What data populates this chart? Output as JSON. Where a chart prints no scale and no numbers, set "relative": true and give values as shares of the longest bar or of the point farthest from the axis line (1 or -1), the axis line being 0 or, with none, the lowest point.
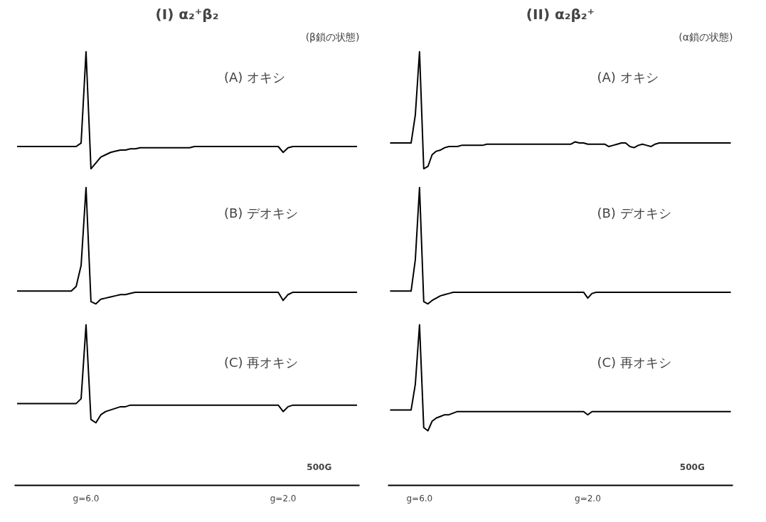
{
  "chart_data": [
    {
      "type": "line",
      "relative": true,
      "title": "(I) α₂⁺β₂",
      "subtitle": "(β鎖の状態)",
      "annotations": [
        "(A) オキシ"
      ],
      "tick_labels": false,
      "categories": [
        null,
        null,
        null,
        null,
        null,
        null,
        null,
        null,
        null,
        null,
        null,
        null,
        null,
        null,
        null,
        null,
        null,
        null,
        null,
        null,
        null,
        null,
        null,
        null,
        null,
        null,
        null,
        null,
        null,
        null,
        null,
        null,
        null,
        null,
        null,
        null,
        null,
        null,
        null,
        null,
        null,
        null,
        null,
        null,
        null,
        null,
        null,
        null,
        null,
        null,
        null,
        null,
        null,
        null,
        null,
        null,
        null,
        null,
        null,
        null,
        null,
        null,
        null,
        null,
        null,
        null,
        null,
        null,
        null,
        null
      ],
      "series": [
        {
          "color": "#000000",
          "values": [
            0.19,
            0.19,
            0.19,
            0.19,
            0.19,
            0.19,
            0.19,
            0.19,
            0.19,
            0.19,
            0.19,
            0.19,
            0.19,
            0.22,
            1,
            0,
            0.05,
            0.1,
            0.12,
            0.14,
            0.15,
            0.16,
            0.16,
            0.17,
            0.17,
            0.18,
            0.18,
            0.18,
            0.18,
            0.18,
            0.18,
            0.18,
            0.18,
            0.18,
            0.18,
            0.18,
            0.19,
            0.19,
            0.19,
            0.19,
            0.19,
            0.19,
            0.19,
            0.19,
            0.19,
            0.19,
            0.19,
            0.19,
            0.19,
            0.19,
            0.19,
            0.19,
            0.19,
            0.19,
            0.14,
            0.18,
            0.19,
            0.19,
            0.19,
            0.19,
            0.19,
            0.19,
            0.19,
            0.19,
            0.19,
            0.19,
            0.19,
            0.19,
            0.19,
            0.19
          ]
        }
      ]
    },
    {
      "type": "line",
      "relative": true,
      "title": "(II) α₂β₂⁺",
      "subtitle": "(α鎖の状態)",
      "annotations": [
        "(A) オキシ"
      ],
      "tick_labels": false,
      "categories": [
        null,
        null,
        null,
        null,
        null,
        null,
        null,
        null,
        null,
        null,
        null,
        null,
        null,
        null,
        null,
        null,
        null,
        null,
        null,
        null,
        null,
        null,
        null,
        null,
        null,
        null,
        null,
        null,
        null,
        null,
        null,
        null,
        null,
        null,
        null,
        null,
        null,
        null,
        null,
        null,
        null,
        null,
        null,
        null,
        null,
        null,
        null,
        null,
        null,
        null,
        null,
        null,
        null,
        null,
        null,
        null,
        null,
        null,
        null,
        null,
        null,
        null,
        null,
        null,
        null,
        null,
        null,
        null,
        null,
        null,
        null,
        null,
        null,
        null,
        null,
        null,
        null,
        null,
        null,
        null,
        null,
        null
      ],
      "series": [
        {
          "color": "#000000",
          "values": [
            0.22,
            0.22,
            0.22,
            0.22,
            0.22,
            0.22,
            0.46,
            1,
            0,
            0.02,
            0.12,
            0.15,
            0.16,
            0.18,
            0.19,
            0.19,
            0.19,
            0.2,
            0.2,
            0.2,
            0.2,
            0.2,
            0.2,
            0.21,
            0.21,
            0.21,
            0.21,
            0.21,
            0.21,
            0.21,
            0.21,
            0.21,
            0.21,
            0.21,
            0.21,
            0.21,
            0.21,
            0.21,
            0.21,
            0.21,
            0.21,
            0.21,
            0.21,
            0.21,
            0.23,
            0.22,
            0.22,
            0.21,
            0.21,
            0.21,
            0.21,
            0.21,
            0.19,
            0.2,
            0.21,
            0.22,
            0.22,
            0.19,
            0.18,
            0.2,
            0.21,
            0.2,
            0.19,
            0.21,
            0.22,
            0.22,
            0.22,
            0.22,
            0.22,
            0.22,
            0.22,
            0.22,
            0.22,
            0.22,
            0.22,
            0.22,
            0.22,
            0.22,
            0.22,
            0.22,
            0.22,
            0.22
          ]
        }
      ]
    },
    {
      "type": "line",
      "relative": true,
      "annotations": [
        "(B) デオキシ"
      ],
      "tick_labels": false,
      "categories": [
        null,
        null,
        null,
        null,
        null,
        null,
        null,
        null,
        null,
        null,
        null,
        null,
        null,
        null,
        null,
        null,
        null,
        null,
        null,
        null,
        null,
        null,
        null,
        null,
        null,
        null,
        null,
        null,
        null,
        null,
        null,
        null,
        null,
        null,
        null,
        null,
        null,
        null,
        null,
        null,
        null,
        null,
        null,
        null,
        null,
        null,
        null,
        null,
        null,
        null,
        null,
        null,
        null,
        null,
        null,
        null,
        null,
        null,
        null,
        null,
        null,
        null,
        null,
        null,
        null,
        null,
        null,
        null,
        null,
        null
      ],
      "series": [
        {
          "color": "#000000",
          "values": [
            0.11,
            0.11,
            0.11,
            0.11,
            0.11,
            0.11,
            0.11,
            0.11,
            0.11,
            0.11,
            0.11,
            0.11,
            0.15,
            0.33,
            1,
            0.02,
            0,
            0.04,
            0.05,
            0.06,
            0.07,
            0.08,
            0.08,
            0.09,
            0.1,
            0.1,
            0.1,
            0.1,
            0.1,
            0.1,
            0.1,
            0.1,
            0.1,
            0.1,
            0.1,
            0.1,
            0.1,
            0.1,
            0.1,
            0.1,
            0.1,
            0.1,
            0.1,
            0.1,
            0.1,
            0.1,
            0.1,
            0.1,
            0.1,
            0.1,
            0.1,
            0.1,
            0.1,
            0.1,
            0.03,
            0.08,
            0.1,
            0.1,
            0.1,
            0.1,
            0.1,
            0.1,
            0.1,
            0.1,
            0.1,
            0.1,
            0.1,
            0.1,
            0.1,
            0.1
          ]
        }
      ]
    },
    {
      "type": "line",
      "relative": true,
      "annotations": [
        "(B) デオキシ"
      ],
      "tick_labels": false,
      "categories": [
        null,
        null,
        null,
        null,
        null,
        null,
        null,
        null,
        null,
        null,
        null,
        null,
        null,
        null,
        null,
        null,
        null,
        null,
        null,
        null,
        null,
        null,
        null,
        null,
        null,
        null,
        null,
        null,
        null,
        null,
        null,
        null,
        null,
        null,
        null,
        null,
        null,
        null,
        null,
        null,
        null,
        null,
        null,
        null,
        null,
        null,
        null,
        null,
        null,
        null,
        null,
        null,
        null,
        null,
        null,
        null,
        null,
        null,
        null,
        null,
        null,
        null,
        null,
        null,
        null,
        null,
        null,
        null,
        null,
        null,
        null,
        null,
        null,
        null,
        null,
        null,
        null,
        null,
        null,
        null,
        null,
        null
      ],
      "series": [
        {
          "color": "#000000",
          "values": [
            0.11,
            0.11,
            0.11,
            0.11,
            0.11,
            0.11,
            0.38,
            1,
            0.02,
            0,
            0.03,
            0.05,
            0.07,
            0.08,
            0.09,
            0.1,
            0.1,
            0.1,
            0.1,
            0.1,
            0.1,
            0.1,
            0.1,
            0.1,
            0.1,
            0.1,
            0.1,
            0.1,
            0.1,
            0.1,
            0.1,
            0.1,
            0.1,
            0.1,
            0.1,
            0.1,
            0.1,
            0.1,
            0.1,
            0.1,
            0.1,
            0.1,
            0.1,
            0.1,
            0.1,
            0.1,
            0.1,
            0.05,
            0.09,
            0.1,
            0.1,
            0.1,
            0.1,
            0.1,
            0.1,
            0.1,
            0.1,
            0.1,
            0.1,
            0.1,
            0.1,
            0.1,
            0.1,
            0.1,
            0.1,
            0.1,
            0.1,
            0.1,
            0.1,
            0.1,
            0.1,
            0.1,
            0.1,
            0.1,
            0.1,
            0.1,
            0.1,
            0.1,
            0.1,
            0.1,
            0.1,
            0.1
          ]
        }
      ]
    },
    {
      "type": "line",
      "relative": true,
      "annotations": [
        "(C) 再オキシ",
        "500G"
      ],
      "tick_labels": "x",
      "categories": [
        null,
        null,
        null,
        null,
        null,
        null,
        null,
        null,
        null,
        null,
        null,
        null,
        null,
        null,
        "g=6.0",
        null,
        null,
        null,
        null,
        null,
        null,
        null,
        null,
        null,
        null,
        null,
        null,
        null,
        null,
        null,
        null,
        null,
        null,
        null,
        null,
        null,
        null,
        null,
        null,
        null,
        null,
        null,
        null,
        null,
        null,
        null,
        null,
        null,
        null,
        null,
        null,
        null,
        null,
        null,
        "g=2.0",
        null,
        null,
        null,
        null,
        null,
        null,
        null,
        null,
        null,
        null,
        null,
        null,
        null,
        null,
        null
      ],
      "series": [
        {
          "color": "#000000",
          "values": [
            0.51,
            0.51,
            0.51,
            0.51,
            0.51,
            0.51,
            0.51,
            0.51,
            0.51,
            0.51,
            0.51,
            0.51,
            0.51,
            0.54,
            1,
            0.41,
            0.39,
            0.44,
            0.46,
            0.47,
            0.48,
            0.49,
            0.49,
            0.5,
            0.5,
            0.5,
            0.5,
            0.5,
            0.5,
            0.5,
            0.5,
            0.5,
            0.5,
            0.5,
            0.5,
            0.5,
            0.5,
            0.5,
            0.5,
            0.5,
            0.5,
            0.5,
            0.5,
            0.5,
            0.5,
            0.5,
            0.5,
            0.5,
            0.5,
            0.5,
            0.5,
            0.5,
            0.5,
            0.5,
            0.46,
            0.49,
            0.5,
            0.5,
            0.5,
            0.5,
            0.5,
            0.5,
            0.5,
            0.5,
            0.5,
            0.5,
            0.5,
            0.5,
            0.5,
            0.5
          ]
        }
      ]
    },
    {
      "type": "line",
      "relative": true,
      "annotations": [
        "(C) 再オキシ",
        "500G"
      ],
      "tick_labels": "x",
      "categories": [
        null,
        null,
        null,
        null,
        null,
        null,
        null,
        "g=6.0",
        null,
        null,
        null,
        null,
        null,
        null,
        null,
        null,
        null,
        null,
        null,
        null,
        null,
        null,
        null,
        null,
        null,
        null,
        null,
        null,
        null,
        null,
        null,
        null,
        null,
        null,
        null,
        null,
        null,
        null,
        null,
        null,
        null,
        null,
        null,
        null,
        null,
        null,
        null,
        "g=2.0",
        null,
        null,
        null,
        null,
        null,
        null,
        null,
        null,
        null,
        null,
        null,
        null,
        null,
        null,
        null,
        null,
        null,
        null,
        null,
        null,
        null,
        null,
        null,
        null,
        null,
        null,
        null,
        null,
        null,
        null,
        null,
        null,
        null,
        null
      ],
      "series": [
        {
          "color": "#000000",
          "values": [
            0.47,
            0.47,
            0.47,
            0.47,
            0.47,
            0.47,
            0.63,
            1,
            0.36,
            0.34,
            0.4,
            0.42,
            0.43,
            0.44,
            0.44,
            0.45,
            0.46,
            0.46,
            0.46,
            0.46,
            0.46,
            0.46,
            0.46,
            0.46,
            0.46,
            0.46,
            0.46,
            0.46,
            0.46,
            0.46,
            0.46,
            0.46,
            0.46,
            0.46,
            0.46,
            0.46,
            0.46,
            0.46,
            0.46,
            0.46,
            0.46,
            0.46,
            0.46,
            0.46,
            0.46,
            0.46,
            0.46,
            0.44,
            0.46,
            0.46,
            0.46,
            0.46,
            0.46,
            0.46,
            0.46,
            0.46,
            0.46,
            0.46,
            0.46,
            0.46,
            0.46,
            0.46,
            0.46,
            0.46,
            0.46,
            0.46,
            0.46,
            0.46,
            0.46,
            0.46,
            0.46,
            0.46,
            0.46,
            0.46,
            0.46,
            0.46,
            0.46,
            0.46,
            0.46,
            0.46,
            0.46,
            0.46
          ]
        }
      ]
    }
  ]
}
